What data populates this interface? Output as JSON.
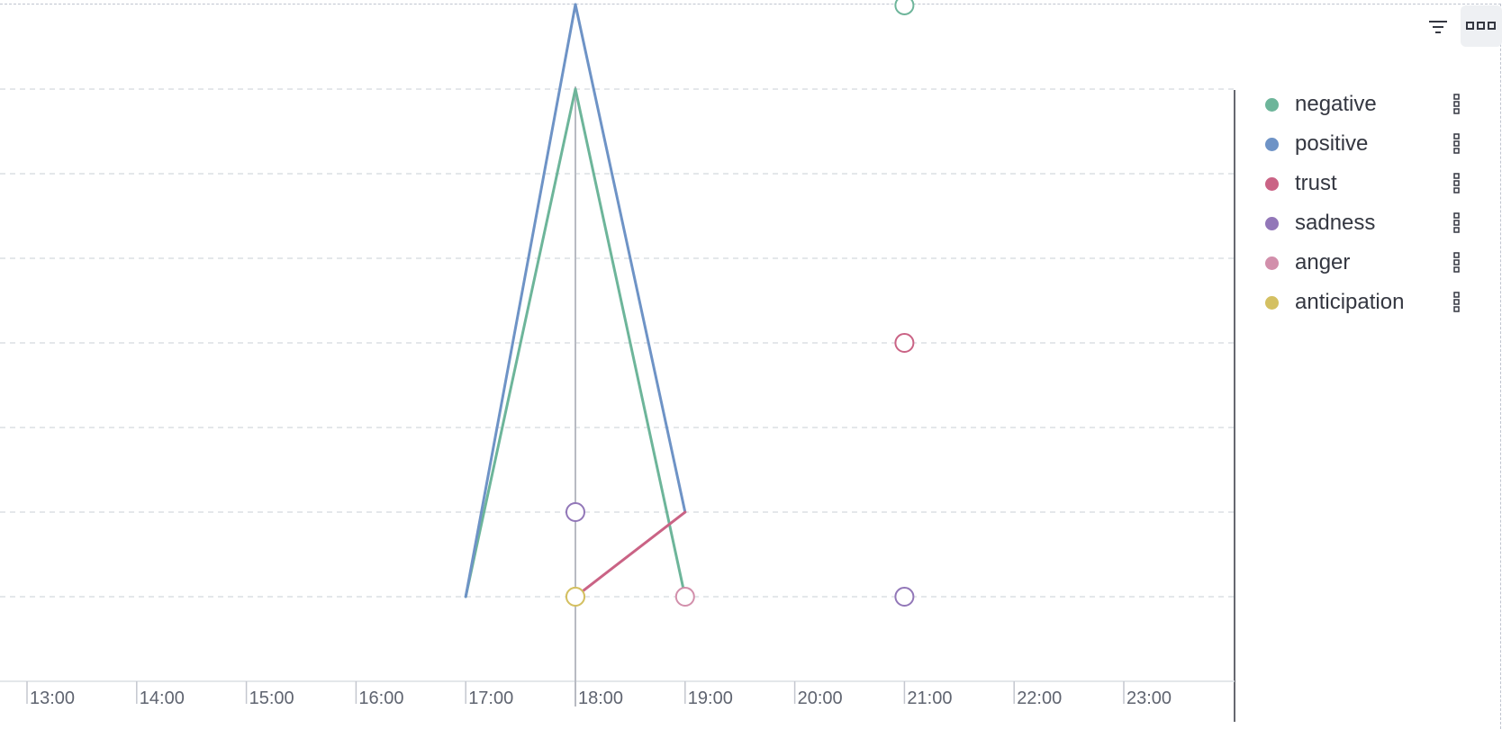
{
  "toolbar": {
    "filter_icon": "filter-icon",
    "more_icon": "more-options-icon"
  },
  "colors": {
    "negative": "#6db59a",
    "positive": "#6e93c6",
    "trust": "#ca6385",
    "sadness": "#9277b8",
    "anger": "#d28fab",
    "anticipation": "#d4c062",
    "grid": "#dcdfe4",
    "axis": "#c4c7cf",
    "cursor": "#b8bbc3"
  },
  "legend": {
    "items": [
      {
        "label": "negative",
        "color": "#6db59a",
        "menu_icon": "vertical-dots-icon"
      },
      {
        "label": "positive",
        "color": "#6e93c6",
        "menu_icon": "vertical-dots-icon"
      },
      {
        "label": "trust",
        "color": "#ca6385",
        "menu_icon": "vertical-dots-icon"
      },
      {
        "label": "sadness",
        "color": "#9277b8",
        "menu_icon": "vertical-dots-icon"
      },
      {
        "label": "anger",
        "color": "#d28fab",
        "menu_icon": "vertical-dots-icon"
      },
      {
        "label": "anticipation",
        "color": "#d4c062",
        "menu_icon": "vertical-dots-icon"
      }
    ]
  },
  "chart_data": {
    "type": "line",
    "x_ticks": [
      "13:00",
      "14:00",
      "15:00",
      "16:00",
      "17:00",
      "18:00",
      "19:00",
      "20:00",
      "21:00",
      "22:00",
      "23:00"
    ],
    "grid": true,
    "legend_position": "right",
    "cursor_x": "18:00",
    "series": [
      {
        "name": "negative",
        "points": [
          [
            "17:00",
            1
          ],
          [
            "18:00",
            7
          ],
          [
            "19:00",
            1
          ],
          [
            "21:00",
            7.99
          ]
        ]
      },
      {
        "name": "positive",
        "points": [
          [
            "17:00",
            1
          ],
          [
            "18:00",
            8
          ],
          [
            "19:00",
            2
          ]
        ]
      },
      {
        "name": "trust",
        "points": [
          [
            "18:00",
            1
          ],
          [
            "19:00",
            2
          ],
          [
            "21:00",
            4
          ]
        ]
      },
      {
        "name": "sadness",
        "points": [
          [
            "18:00",
            2
          ],
          [
            "21:00",
            1
          ]
        ]
      },
      {
        "name": "anger",
        "points": [
          [
            "19:00",
            1
          ]
        ]
      },
      {
        "name": "anticipation",
        "points": [
          [
            "18:00",
            1
          ]
        ]
      }
    ]
  }
}
